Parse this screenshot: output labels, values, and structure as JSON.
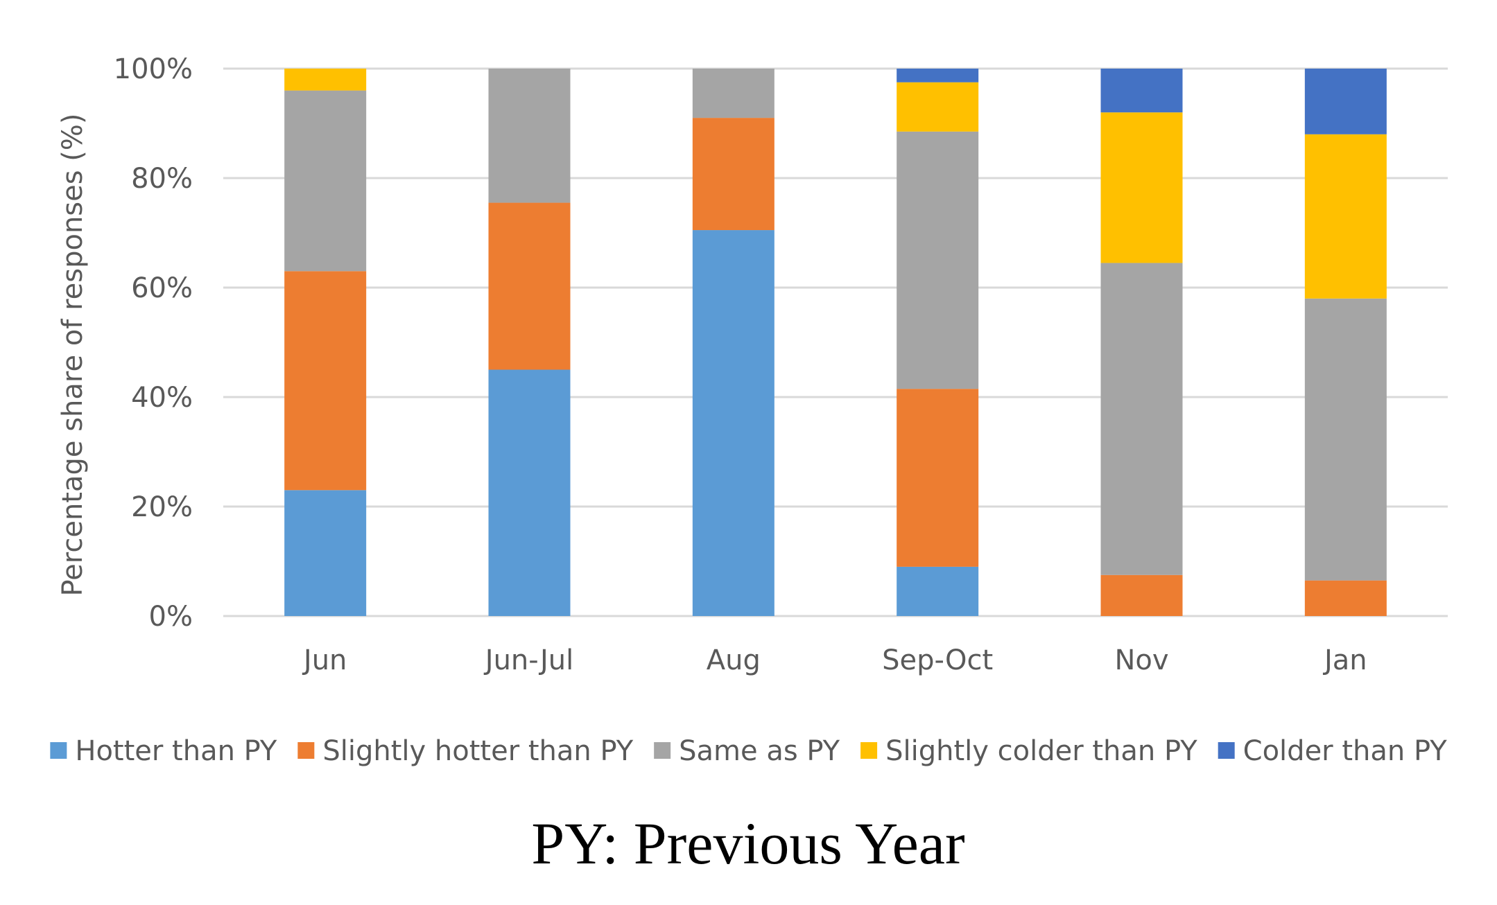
{
  "chart_data": {
    "type": "bar",
    "stacked": true,
    "categories": [
      "Jun",
      "Jun-Jul",
      "Aug",
      "Sep-Oct",
      "Nov",
      "Jan"
    ],
    "series": [
      {
        "name": "Hotter than PY",
        "color": "#5b9bd5",
        "values": [
          23,
          45,
          70.5,
          9,
          0,
          0
        ]
      },
      {
        "name": "Slightly hotter than PY",
        "color": "#ed7d31",
        "values": [
          40,
          30.5,
          20.5,
          32.5,
          7.5,
          6.5
        ]
      },
      {
        "name": "Same as PY",
        "color": "#a5a5a5",
        "values": [
          33,
          24.5,
          9,
          47,
          57,
          51.5
        ]
      },
      {
        "name": "Slightly colder than PY",
        "color": "#ffc000",
        "values": [
          4,
          0,
          0,
          9,
          27.5,
          30
        ]
      },
      {
        "name": "Colder than PY",
        "color": "#4472c4",
        "values": [
          0,
          0,
          0,
          2.5,
          8,
          12
        ]
      }
    ],
    "ylabel": "Percentage share of responses (%)",
    "xlabel": "",
    "ylim": [
      0,
      100
    ],
    "yticks": [
      0,
      20,
      40,
      60,
      80,
      100
    ],
    "ytick_labels": [
      "0%",
      "20%",
      "40%",
      "60%",
      "80%",
      "100%"
    ],
    "grid": true,
    "legend_position": "bottom"
  },
  "caption": "PY: Previous Year"
}
